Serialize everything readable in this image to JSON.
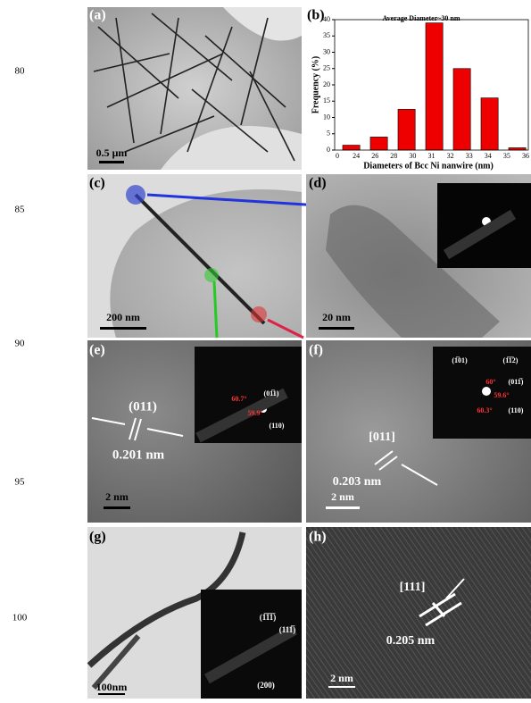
{
  "line_numbers": [
    "80",
    "85",
    "90",
    "95",
    "100"
  ],
  "panels": [
    {
      "label": "(a)",
      "scale_bar": "0.5 μm",
      "annotations": []
    },
    {
      "label": "(c)",
      "scale_bar": "200 nm",
      "annotations": []
    },
    {
      "label": "(d)",
      "scale_bar": "20 nm",
      "annotations": []
    },
    {
      "label": "(e)",
      "scale_bar": "2 nm",
      "annotations": [
        "(011)",
        "0.201 nm",
        "(01̅1)",
        "60.7°",
        "59.9°",
        "(110)"
      ]
    },
    {
      "label": "(f)",
      "scale_bar": "2 nm",
      "annotations": [
        "[011]",
        "0.203 nm",
        "(1̅01)",
        "(1̅1̅2)",
        "60°",
        "(011̅)",
        "59.6°",
        "60.3°",
        "(110)"
      ]
    },
    {
      "label": "(g)",
      "scale_bar": "100nm",
      "annotations": [
        "(1̅1̅1̅)",
        "(111̅)",
        "(200)"
      ]
    },
    {
      "label": "(h)",
      "scale_bar": "2 nm",
      "annotations": [
        "[111]",
        "0.205 nm"
      ]
    }
  ],
  "chart_data": {
    "type": "bar",
    "panel_label": "(b)",
    "title": "Average Diameter~30 nm",
    "x_label": "Diameters of Bcc Ni nanwire (nm)",
    "y_label": "Frequency (%)",
    "x_tick_labels": [
      "0",
      "24",
      "26",
      "28",
      "30",
      "31",
      "32",
      "33",
      "34",
      "35",
      "36"
    ],
    "values": [
      1.5,
      4,
      12.5,
      39,
      25,
      16,
      0.7
    ],
    "color": "#ee0000",
    "ylim": [
      0,
      40
    ],
    "yticks": [
      0,
      5,
      10,
      15,
      20,
      25,
      30,
      35,
      40
    ]
  }
}
